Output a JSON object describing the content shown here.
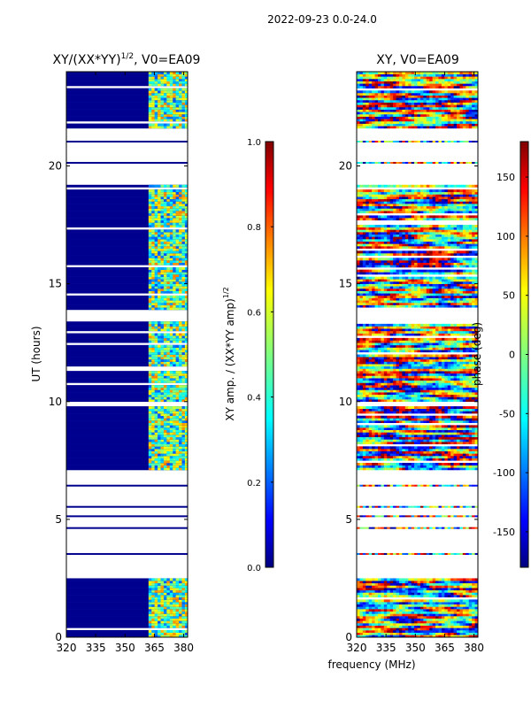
{
  "page_title": "2022-09-23 0.0-24.0",
  "chart_data": [
    {
      "type": "heatmap",
      "title_main": "XY/(XX*YY)",
      "title_sup": "1/2",
      "title_suffix": ", V0=EA09",
      "xlabel": "",
      "ylabel": "UT (hours)",
      "xlim": [
        320,
        382
      ],
      "ylim": [
        0,
        24
      ],
      "xticks": [
        320,
        335,
        350,
        365,
        380
      ],
      "yticks": [
        0,
        5,
        10,
        15,
        20
      ],
      "colorbar": {
        "label_main": "XY amp. / (XX*YY amp)",
        "label_sup": "1/2",
        "range": [
          0.0,
          1.0
        ],
        "ticks": [
          "0.0",
          "0.2",
          "0.4",
          "0.6",
          "0.8",
          "1.0"
        ]
      },
      "data_blocks_ut": [
        [
          0,
          2.5
        ],
        [
          7.1,
          9.8
        ],
        [
          10.0,
          13.4
        ],
        [
          13.9,
          19.2
        ],
        [
          21.6,
          24
        ]
      ],
      "active_band_mhz": [
        362,
        382
      ]
    },
    {
      "type": "heatmap",
      "title": "XY, V0=EA09",
      "xlabel": "",
      "ylabel": "",
      "xlim": [
        320,
        382
      ],
      "ylim": [
        0,
        24
      ],
      "xticks": [
        320,
        335,
        350,
        365,
        380
      ],
      "yticks": [
        0,
        5,
        10,
        15,
        20
      ],
      "colorbar": {
        "label": "phase (deg)",
        "range": [
          -180,
          180
        ],
        "ticks": [
          "-150",
          "-100",
          "-50",
          "0",
          "50",
          "100",
          "150"
        ]
      },
      "data_blocks_ut": [
        [
          0,
          2.5
        ],
        [
          7.1,
          9.8
        ],
        [
          10.0,
          13.4
        ],
        [
          13.9,
          19.2
        ],
        [
          21.6,
          24
        ]
      ]
    }
  ],
  "shared_xlabel": "frequency (MHz)",
  "colors": {
    "jet": [
      "#00007f",
      "#0000ff",
      "#007fff",
      "#00ffff",
      "#7fff7f",
      "#ffff00",
      "#ff7f00",
      "#ff0000",
      "#7f0000"
    ],
    "frame": "#000000",
    "background": "#ffffff"
  }
}
